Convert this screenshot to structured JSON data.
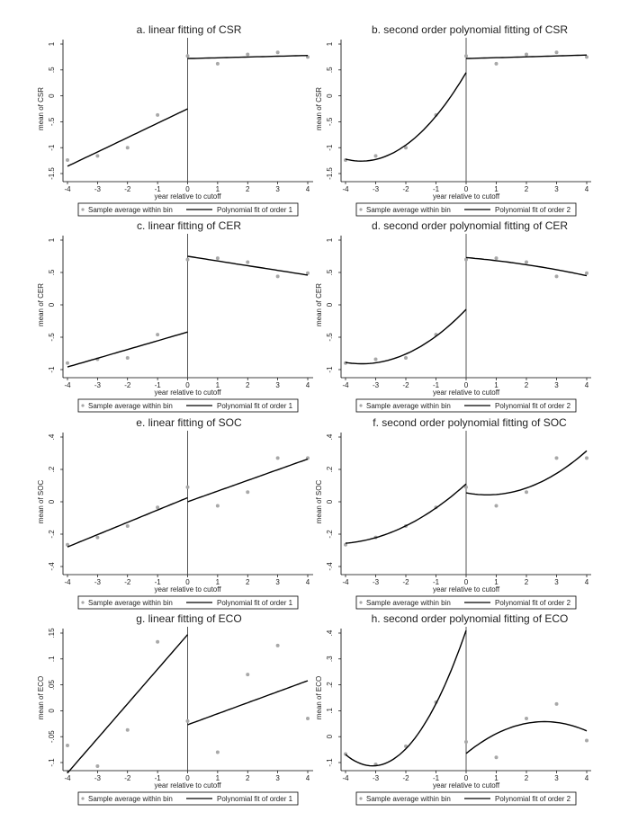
{
  "chart_data": [
    {
      "type": "scatter+line",
      "title": "a. linear fitting of CSR",
      "xlabel": "year relative to cutoff",
      "ylabel": "mean of CSR",
      "x": [
        -4,
        -3,
        -2,
        -1,
        0,
        1,
        2,
        3,
        4
      ],
      "bin_means": [
        -1.24,
        -1.16,
        -1.0,
        -0.37,
        0.77,
        0.62,
        0.8,
        0.84,
        0.75
      ],
      "fit_order": 1,
      "fit_left": [
        -0.25,
        0.2775,
        0
      ],
      "fit_right": [
        0.72,
        0.015,
        0
      ],
      "yticks": [
        -1.5,
        -1,
        -0.5,
        0,
        0.5,
        1
      ],
      "ytick_labels": [
        "-1.5",
        "-1",
        "-.5",
        "0",
        ".5",
        "1"
      ],
      "ylim": [
        -1.5,
        1
      ],
      "legend": [
        "Sample average within bin",
        "Polynomial fit of order 1"
      ]
    },
    {
      "type": "scatter+line",
      "title": "b. second order polynomial fitting of CSR",
      "xlabel": "year relative to cutoff",
      "ylabel": "mean of CSR",
      "x": [
        -4,
        -3,
        -2,
        -1,
        0,
        1,
        2,
        3,
        4
      ],
      "bin_means": [
        -1.24,
        -1.16,
        -1.0,
        -0.37,
        0.77,
        0.62,
        0.8,
        0.84,
        0.75
      ],
      "fit_order": 2,
      "fit_left": [
        0.45,
        0.982,
        0.141
      ],
      "fit_right": [
        0.72,
        0.017,
        0
      ],
      "yticks": [
        -1.5,
        -1,
        -0.5,
        0,
        0.5,
        1
      ],
      "ytick_labels": [
        "-1.5",
        "-1",
        "-.5",
        "0",
        ".5",
        "1"
      ],
      "ylim": [
        -1.5,
        1
      ],
      "legend": [
        "Sample average within bin",
        "Polynomial fit of order 2"
      ]
    },
    {
      "type": "scatter+line",
      "title": "c. linear fitting of CER",
      "xlabel": "year relative to cutoff",
      "ylabel": "mean of CER",
      "x": [
        -4,
        -3,
        -2,
        -1,
        0,
        1,
        2,
        3,
        4
      ],
      "bin_means": [
        -0.9,
        -0.84,
        -0.82,
        -0.46,
        0.7,
        0.72,
        0.66,
        0.44,
        0.49
      ],
      "fit_order": 1,
      "fit_left": [
        -0.42,
        0.135,
        0
      ],
      "fit_right": [
        0.75,
        -0.0725,
        0
      ],
      "yticks": [
        -1,
        -0.5,
        0,
        0.5,
        1
      ],
      "ytick_labels": [
        "-1",
        "-.5",
        "0",
        ".5",
        "1"
      ],
      "ylim": [
        -1,
        1
      ],
      "legend": [
        "Sample average within bin",
        "Polynomial fit of order 1"
      ]
    },
    {
      "type": "scatter+line",
      "title": "d. second order polynomial fitting of CER",
      "xlabel": "year relative to cutoff",
      "ylabel": "mean of CER",
      "x": [
        -4,
        -3,
        -2,
        -1,
        0,
        1,
        2,
        3,
        4
      ],
      "bin_means": [
        -0.9,
        -0.84,
        -0.82,
        -0.46,
        0.7,
        0.72,
        0.66,
        0.44,
        0.49
      ],
      "fit_order": 2,
      "fit_left": [
        -0.07,
        0.485,
        0.07
      ],
      "fit_right": [
        0.73,
        -0.04,
        -0.0075
      ],
      "yticks": [
        -1,
        -0.5,
        0,
        0.5,
        1
      ],
      "ytick_labels": [
        "-1",
        "-.5",
        "0",
        ".5",
        "1"
      ],
      "ylim": [
        -1,
        1
      ],
      "legend": [
        "Sample average within bin",
        "Polynomial fit of order 2"
      ]
    },
    {
      "type": "scatter+line",
      "title": "e. linear fitting of SOC",
      "xlabel": "year relative to cutoff",
      "ylabel": "mean of SOC",
      "x": [
        -4,
        -3,
        -2,
        -1,
        0,
        1,
        2,
        3,
        4
      ],
      "bin_means": [
        -0.265,
        -0.22,
        -0.15,
        -0.035,
        0.09,
        -0.025,
        0.06,
        0.27,
        0.27
      ],
      "fit_order": 1,
      "fit_left": [
        0.025,
        0.076,
        0
      ],
      "fit_right": [
        0.0,
        0.066,
        0
      ],
      "yticks": [
        -0.4,
        -0.2,
        0,
        0.2,
        0.4
      ],
      "ytick_labels": [
        "-.4",
        "-.2",
        "0",
        ".2",
        ".4"
      ],
      "ylim": [
        -0.4,
        0.4
      ],
      "legend": [
        "Sample average within bin",
        "Polynomial fit of order 1"
      ]
    },
    {
      "type": "scatter+line",
      "title": "f. second order polynomial fitting of SOC",
      "xlabel": "year relative to cutoff",
      "ylabel": "mean of SOC",
      "x": [
        -4,
        -3,
        -2,
        -1,
        0,
        1,
        2,
        3,
        4
      ],
      "bin_means": [
        -0.265,
        -0.22,
        -0.15,
        -0.035,
        0.09,
        -0.025,
        0.06,
        0.27,
        0.27
      ],
      "fit_order": 2,
      "fit_left": [
        0.11,
        0.1675,
        0.019
      ],
      "fit_right": [
        0.055,
        -0.035,
        0.025
      ],
      "yticks": [
        -0.4,
        -0.2,
        0,
        0.2,
        0.4
      ],
      "ytick_labels": [
        "-.4",
        "-.2",
        "0",
        ".2",
        ".4"
      ],
      "ylim": [
        -0.4,
        0.4
      ],
      "legend": [
        "Sample average within bin",
        "Polynomial fit of order 2"
      ]
    },
    {
      "type": "scatter+line",
      "title": "g. linear fitting of ECO",
      "xlabel": "year relative to cutoff",
      "ylabel": "mean of ECO",
      "x": [
        -4,
        -3,
        -2,
        -1,
        0,
        1,
        2,
        3,
        4
      ],
      "bin_means": [
        -0.067,
        -0.107,
        -0.037,
        0.133,
        -0.02,
        -0.08,
        0.07,
        0.126,
        -0.015
      ],
      "fit_order": 1,
      "fit_left": [
        0.147,
        0.0668,
        0
      ],
      "fit_right": [
        -0.027,
        0.02125,
        0
      ],
      "yticks": [
        -0.1,
        -0.05,
        0,
        0.05,
        0.1,
        0.15
      ],
      "ytick_labels": [
        "-.1",
        "-.05",
        "0",
        ".05",
        ".1",
        ".15"
      ],
      "ylim": [
        -0.1,
        0.15
      ],
      "legend": [
        "Sample average within bin",
        "Polynomial fit of order 1"
      ]
    },
    {
      "type": "scatter+line",
      "title": "h. second order polynomial fitting of ECO",
      "xlabel": "year relative to cutoff",
      "ylabel": "mean of ECO",
      "x": [
        -4,
        -3,
        -2,
        -1,
        0,
        1,
        2,
        3,
        4
      ],
      "bin_means": [
        -0.067,
        -0.107,
        -0.037,
        0.133,
        -0.02,
        -0.08,
        0.07,
        0.126,
        -0.015
      ],
      "fit_order": 2,
      "fit_left": [
        0.41,
        0.337,
        0.0543
      ],
      "fit_right": [
        -0.065,
        0.0946,
        -0.0182
      ],
      "yticks": [
        -0.1,
        0,
        0.1,
        0.2,
        0.3,
        0.4
      ],
      "ytick_labels": [
        "-.1",
        "0",
        ".1",
        ".2",
        ".3",
        ".4"
      ],
      "ylim": [
        -0.1,
        0.4
      ],
      "legend": [
        "Sample average within bin",
        "Polynomial fit of order 2"
      ]
    }
  ],
  "xticks": [
    -4,
    -3,
    -2,
    -1,
    0,
    1,
    2,
    3,
    4
  ],
  "colors": {
    "points": "#a8a8a8",
    "fit": "#000000",
    "cutoff": "#555555"
  }
}
